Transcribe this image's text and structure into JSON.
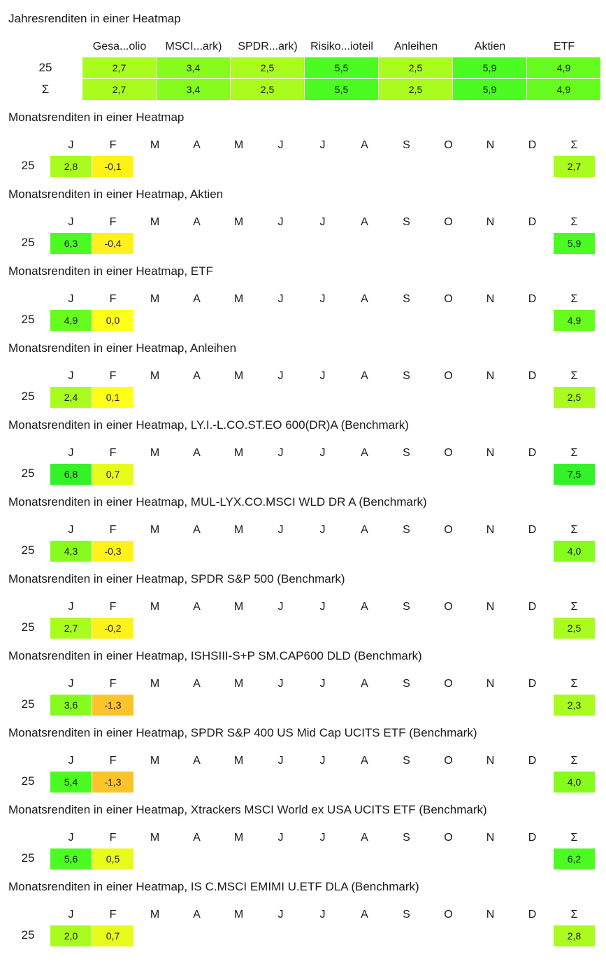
{
  "annual": {
    "title": "Jahresrenditen in einer Heatmap",
    "columns": [
      "Gesa...olio",
      "MSCI...ark)",
      "SPDR...ark)",
      "Risiko...ioteil",
      "Anleihen",
      "Aktien",
      "ETF"
    ],
    "rows": [
      {
        "label": "25",
        "values": [
          "2,7",
          "3,4",
          "2,5",
          "5,5",
          "2,5",
          "5,9",
          "4,9"
        ]
      },
      {
        "label": "Σ",
        "values": [
          "2,7",
          "3,4",
          "2,5",
          "5,5",
          "2,5",
          "5,9",
          "4,9"
        ]
      }
    ]
  },
  "monthly_header": [
    "J",
    "F",
    "M",
    "A",
    "M",
    "J",
    "J",
    "A",
    "S",
    "O",
    "N",
    "D",
    "Σ"
  ],
  "monthly": [
    {
      "title": "Monatsrenditen in einer Heatmap",
      "year": "25",
      "values": [
        "2,8",
        "-0,1"
      ],
      "sum": "2,7"
    },
    {
      "title": "Monatsrenditen in einer Heatmap, Aktien",
      "year": "25",
      "values": [
        "6,3",
        "-0,4"
      ],
      "sum": "5,9"
    },
    {
      "title": "Monatsrenditen in einer Heatmap, ETF",
      "year": "25",
      "values": [
        "4,9",
        "0,0"
      ],
      "sum": "4,9"
    },
    {
      "title": "Monatsrenditen in einer Heatmap, Anleihen",
      "year": "25",
      "values": [
        "2,4",
        "0,1"
      ],
      "sum": "2,5"
    },
    {
      "title": "Monatsrenditen in einer Heatmap, LY.I.-L.CO.ST.EO 600(DR)A (Benchmark)",
      "year": "25",
      "values": [
        "6,8",
        "0,7"
      ],
      "sum": "7,5"
    },
    {
      "title": "Monatsrenditen in einer Heatmap, MUL-LYX.CO.MSCI WLD DR A (Benchmark)",
      "year": "25",
      "values": [
        "4,3",
        "-0,3"
      ],
      "sum": "4,0"
    },
    {
      "title": "Monatsrenditen in einer Heatmap, SPDR S&P 500 (Benchmark)",
      "year": "25",
      "values": [
        "2,7",
        "-0,2"
      ],
      "sum": "2,5"
    },
    {
      "title": "Monatsrenditen in einer Heatmap, ISHSIII-S+P SM.CAP600 DLD (Benchmark)",
      "year": "25",
      "values": [
        "3,6",
        "-1,3"
      ],
      "sum": "2,3"
    },
    {
      "title": "Monatsrenditen in einer Heatmap, SPDR S&P 400 US Mid Cap UCITS ETF (Benchmark)",
      "year": "25",
      "values": [
        "5,4",
        "-1,3"
      ],
      "sum": "4,0"
    },
    {
      "title": "Monatsrenditen in einer Heatmap, Xtrackers MSCI World ex USA UCITS ETF (Benchmark)",
      "year": "25",
      "values": [
        "5,6",
        "0,5"
      ],
      "sum": "6,2"
    },
    {
      "title": "Monatsrenditen in einer Heatmap, IS C.MSCI EMIMI U.ETF DLA (Benchmark)",
      "year": "25",
      "values": [
        "2,0",
        "0,7"
      ],
      "sum": "2,8"
    }
  ],
  "chart_data": {
    "type": "heatmap",
    "annual": {
      "title": "Jahresrenditen in einer Heatmap",
      "categories": [
        "Gesa...olio",
        "MSCI...ark)",
        "SPDR...ark)",
        "Risiko...ioteil",
        "Anleihen",
        "Aktien",
        "ETF"
      ],
      "rows": [
        "25",
        "Σ"
      ],
      "values": [
        [
          2.7,
          3.4,
          2.5,
          5.5,
          2.5,
          5.9,
          4.9
        ],
        [
          2.7,
          3.4,
          2.5,
          5.5,
          2.5,
          5.9,
          4.9
        ]
      ]
    },
    "monthly": [
      {
        "title": "Monatsrenditen in einer Heatmap",
        "year": "25",
        "months": [
          2.8,
          -0.1
        ],
        "sum": 2.7
      },
      {
        "title": "Monatsrenditen in einer Heatmap, Aktien",
        "year": "25",
        "months": [
          6.3,
          -0.4
        ],
        "sum": 5.9
      },
      {
        "title": "Monatsrenditen in einer Heatmap, ETF",
        "year": "25",
        "months": [
          4.9,
          0.0
        ],
        "sum": 4.9
      },
      {
        "title": "Monatsrenditen in einer Heatmap, Anleihen",
        "year": "25",
        "months": [
          2.4,
          0.1
        ],
        "sum": 2.5
      },
      {
        "title": "Monatsrenditen in einer Heatmap, LY.I.-L.CO.ST.EO 600(DR)A (Benchmark)",
        "year": "25",
        "months": [
          6.8,
          0.7
        ],
        "sum": 7.5
      },
      {
        "title": "Monatsrenditen in einer Heatmap, MUL-LYX.CO.MSCI WLD DR A (Benchmark)",
        "year": "25",
        "months": [
          4.3,
          -0.3
        ],
        "sum": 4.0
      },
      {
        "title": "Monatsrenditen in einer Heatmap, SPDR S&P 500 (Benchmark)",
        "year": "25",
        "months": [
          2.7,
          -0.2
        ],
        "sum": 2.5
      },
      {
        "title": "Monatsrenditen in einer Heatmap, ISHSIII-S+P SM.CAP600 DLD (Benchmark)",
        "year": "25",
        "months": [
          3.6,
          -1.3
        ],
        "sum": 2.3
      },
      {
        "title": "Monatsrenditen in einer Heatmap, SPDR S&P 400 US Mid Cap UCITS ETF (Benchmark)",
        "year": "25",
        "months": [
          5.4,
          -1.3
        ],
        "sum": 4.0
      },
      {
        "title": "Monatsrenditen in einer Heatmap, Xtrackers MSCI World ex USA UCITS ETF (Benchmark)",
        "year": "25",
        "months": [
          5.6,
          0.5
        ],
        "sum": 6.2
      },
      {
        "title": "Monatsrenditen in einer Heatmap, IS C.MSCI EMIMI U.ETF DLA (Benchmark)",
        "year": "25",
        "months": [
          2.0,
          0.7
        ],
        "sum": 2.8
      }
    ]
  },
  "colors": {
    "negative_strong": "#fcc419",
    "negative_weak": "#ffee14",
    "neutral": "#ffff00",
    "positive_low": "#e6fa14",
    "positive_mid": "#a8fc1c",
    "positive_high": "#52fc1c",
    "positive_max": "#2bf52b"
  }
}
